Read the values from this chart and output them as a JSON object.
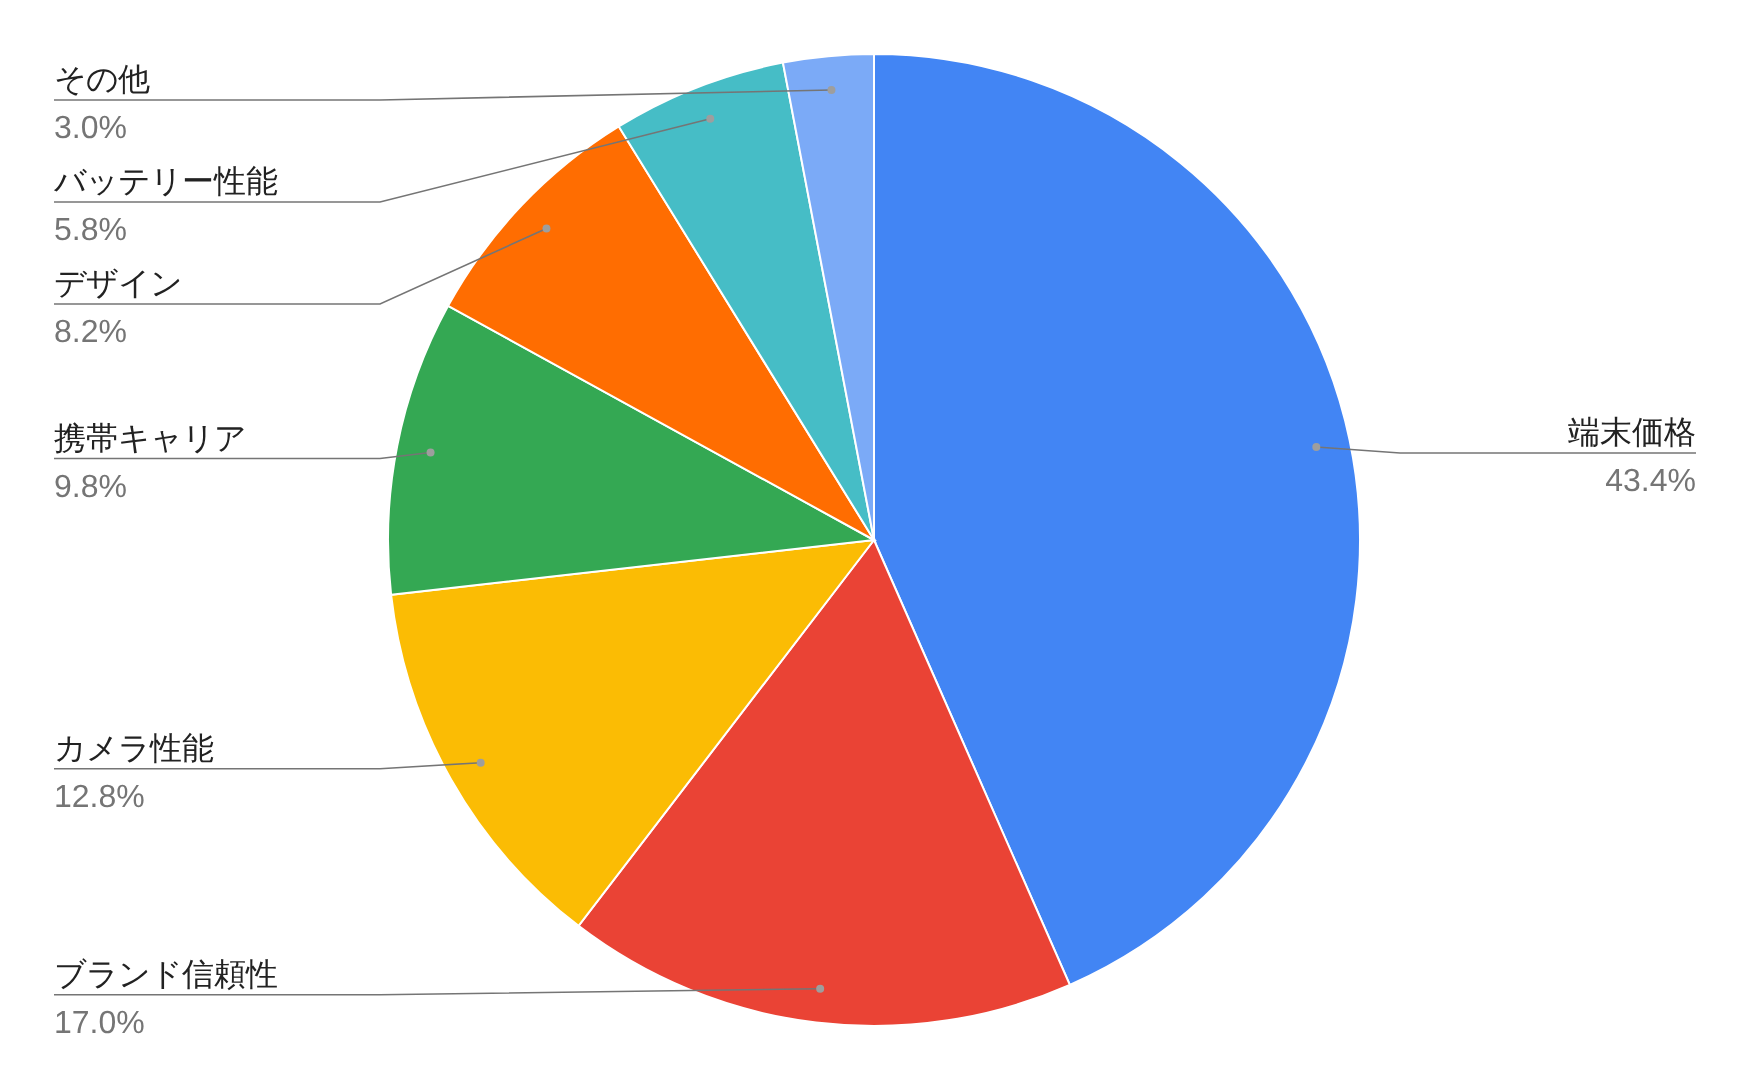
{
  "chart_data": {
    "type": "pie",
    "categories": [
      "端末価格",
      "ブランド信頼性",
      "カメラ性能",
      "携帯キャリア",
      "デザイン",
      "バッテリー性能",
      "その他"
    ],
    "values": [
      43.4,
      17.0,
      12.8,
      9.8,
      8.2,
      5.8,
      3.0
    ],
    "colors": [
      "#4285f4",
      "#ea4335",
      "#fbbc04",
      "#34a853",
      "#ff6d01",
      "#46bdc6",
      "#7baaf7"
    ],
    "value_labels": [
      "43.4%",
      "17.0%",
      "12.8%",
      "9.8%",
      "8.2%",
      "5.8%",
      "3.0%"
    ]
  }
}
